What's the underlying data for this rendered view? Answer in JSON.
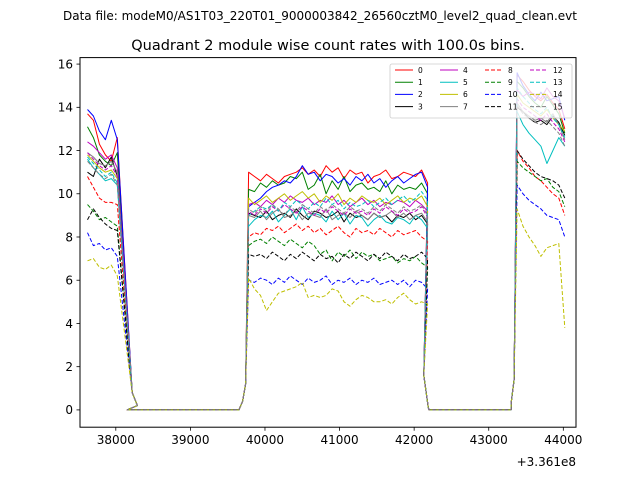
{
  "suptitle": "Data file: modeM0/AS1T03_220T01_9000003842_26560cztM0_level2_quad_clean.evt",
  "chart_data": {
    "type": "line",
    "title": "Quadrant 2 module wise count rates with 100.0s bins.",
    "xlabel": "",
    "ylabel": "",
    "offset_text": "+3.361e8",
    "xlim": [
      37520,
      44170
    ],
    "ylim": [
      -0.8,
      16.3
    ],
    "xticks": [
      38000,
      39000,
      40000,
      41000,
      42000,
      43000,
      44000
    ],
    "xtick_labels": [
      "38000",
      "39000",
      "40000",
      "41000",
      "42000",
      "43000",
      "44000"
    ],
    "yticks": [
      0,
      2,
      4,
      6,
      8,
      10,
      12,
      14,
      16
    ],
    "ytick_labels": [
      "0",
      "2",
      "4",
      "6",
      "8",
      "10",
      "12",
      "14",
      "16"
    ],
    "legend_position": "upper right",
    "legend_columns": 4,
    "segments": [
      {
        "x_start": 37620,
        "x_step": 80,
        "count": 6
      },
      {
        "x_start": 38150,
        "x_step": 100,
        "count": 16
      },
      {
        "x_start": 39780,
        "x_step": 80,
        "count": 31
      },
      {
        "x_start": 42200,
        "x_step": 100,
        "count": 12
      },
      {
        "x_start": 43380,
        "x_step": 80,
        "count": 9
      }
    ],
    "series": [
      {
        "name": "0",
        "color": "#ff0000",
        "dash": false,
        "block1": [
          13.7,
          13.4,
          12.3,
          11.8,
          11.5,
          12.6
        ],
        "block2": [
          11.0,
          10.8,
          10.6,
          10.9,
          10.7,
          10.5,
          10.8,
          10.9,
          11.0,
          11.2,
          10.9,
          11.1,
          10.8,
          11.3,
          11.0,
          11.2,
          10.7,
          11.1,
          10.9,
          11.0,
          10.5,
          10.8,
          10.9,
          11.1,
          10.7,
          10.8,
          11.0,
          10.9,
          10.8,
          11.1,
          10.5
        ],
        "block3": [
          15.5,
          15.2,
          14.8,
          14.5,
          14.3,
          14.6,
          14.2,
          13.9,
          13.0
        ]
      },
      {
        "name": "1",
        "color": "#008000",
        "dash": false,
        "block1": [
          13.1,
          12.6,
          11.8,
          11.5,
          11.3,
          11.9
        ],
        "block2": [
          10.2,
          10.1,
          10.5,
          10.3,
          10.6,
          10.4,
          10.5,
          10.8,
          10.7,
          11.0,
          10.2,
          10.4,
          10.9,
          10.0,
          10.6,
          10.2,
          10.8,
          10.1,
          10.4,
          10.5,
          10.2,
          10.3,
          10.1,
          10.6,
          10.0,
          10.4,
          10.2,
          10.3,
          10.2,
          10.5,
          10.0
        ],
        "block3": [
          15.2,
          14.9,
          14.5,
          14.2,
          14.0,
          14.5,
          14.1,
          13.7,
          12.8
        ]
      },
      {
        "name": "2",
        "color": "#0000ff",
        "dash": false,
        "block1": [
          13.9,
          13.6,
          12.9,
          12.5,
          13.4,
          12.5
        ],
        "block2": [
          9.4,
          9.6,
          9.8,
          10.1,
          10.3,
          10.4,
          10.6,
          10.5,
          10.8,
          11.3,
          10.9,
          11.0,
          10.6,
          10.9,
          10.8,
          10.5,
          10.7,
          10.4,
          10.8,
          10.6,
          10.9,
          10.5,
          10.7,
          10.3,
          10.6,
          10.8,
          10.5,
          10.7,
          10.9,
          11.0,
          10.3
        ],
        "block3": [
          15.6,
          15.0,
          14.6,
          14.3,
          14.7,
          14.3,
          14.4,
          14.5,
          13.4
        ]
      },
      {
        "name": "3",
        "color": "#000000",
        "dash": false,
        "block1": [
          11.0,
          10.8,
          11.6,
          11.2,
          11.7,
          10.8
        ],
        "block2": [
          9.1,
          9.0,
          8.9,
          9.2,
          8.8,
          9.0,
          9.1,
          8.9,
          9.3,
          9.0,
          8.8,
          9.2,
          9.1,
          8.9,
          9.0,
          9.2,
          8.7,
          9.1,
          8.9,
          9.0,
          8.8,
          9.1,
          8.9,
          9.0,
          8.7,
          9.0,
          8.9,
          9.1,
          8.8,
          9.0,
          8.6
        ],
        "block3": [
          14.0,
          13.8,
          13.5,
          13.3,
          13.4,
          13.2,
          13.6,
          13.3,
          12.7
        ]
      },
      {
        "name": "4",
        "color": "#bf00bf",
        "dash": false,
        "block1": [
          12.4,
          12.2,
          11.9,
          11.6,
          11.8,
          11.2
        ],
        "block2": [
          9.5,
          9.6,
          9.4,
          9.7,
          9.5,
          9.8,
          9.6,
          9.9,
          9.7,
          9.6,
          9.8,
          9.5,
          9.7,
          9.6,
          9.9,
          9.5,
          9.7,
          9.4,
          9.6,
          9.8,
          9.5,
          9.7,
          9.4,
          9.6,
          9.5,
          9.7,
          9.6,
          9.4,
          9.7,
          9.5,
          9.2
        ],
        "block3": [
          14.8,
          14.5,
          14.7,
          14.6,
          14.4,
          14.9,
          14.5,
          14.3,
          13.5
        ]
      },
      {
        "name": "5",
        "color": "#00bfbf",
        "dash": false,
        "block1": [
          11.6,
          11.2,
          10.9,
          10.6,
          10.7,
          10.4
        ],
        "block2": [
          8.5,
          8.8,
          9.0,
          8.9,
          9.2,
          8.7,
          9.0,
          9.3,
          8.8,
          9.4,
          8.9,
          9.1,
          9.0,
          8.7,
          9.2,
          8.8,
          9.1,
          8.6,
          9.0,
          8.9,
          8.5,
          8.8,
          9.0,
          8.7,
          8.6,
          8.9,
          8.8,
          8.6,
          9.0,
          8.8,
          8.4
        ],
        "block3": [
          13.8,
          13.2,
          12.8,
          12.5,
          12.2,
          11.4,
          12.0,
          12.6,
          12.2
        ]
      },
      {
        "name": "6",
        "color": "#bfbf00",
        "dash": false,
        "block1": [
          11.8,
          11.5,
          11.2,
          11.0,
          11.1,
          10.7
        ],
        "block2": [
          9.8,
          9.5,
          9.7,
          9.9,
          9.6,
          9.8,
          10.0,
          9.7,
          9.9,
          10.1,
          9.8,
          10.0,
          9.6,
          9.9,
          9.7,
          10.0,
          9.5,
          9.8,
          9.6,
          9.9,
          9.7,
          9.6,
          9.8,
          9.5,
          9.7,
          9.9,
          9.6,
          9.8,
          9.7,
          9.9,
          9.4
        ],
        "block3": [
          14.6,
          14.2,
          14.0,
          13.8,
          13.6,
          13.9,
          13.5,
          13.2,
          12.9
        ]
      },
      {
        "name": "7",
        "color": "#808080",
        "dash": false,
        "block1": [
          11.9,
          11.7,
          11.4,
          11.3,
          11.5,
          11.0
        ],
        "block2": [
          9.0,
          8.9,
          9.2,
          8.8,
          9.1,
          9.3,
          8.9,
          9.0,
          9.2,
          8.8,
          9.1,
          9.0,
          8.9,
          9.3,
          8.8,
          9.0,
          9.1,
          8.9,
          9.2,
          9.0,
          8.8,
          9.1,
          8.9,
          9.0,
          9.2,
          8.9,
          9.1,
          8.8,
          9.0,
          9.1,
          8.7
        ],
        "block3": [
          14.2,
          13.8,
          13.6,
          13.4,
          13.5,
          13.3,
          13.7,
          13.2,
          12.5
        ]
      },
      {
        "name": "8",
        "color": "#ff0000",
        "dash": true,
        "block1": [
          10.8,
          10.3,
          9.8,
          9.6,
          9.6,
          9.5
        ],
        "block2": [
          8.0,
          8.2,
          8.1,
          8.4,
          8.3,
          8.5,
          8.2,
          8.4,
          8.6,
          8.3,
          8.5,
          8.2,
          8.4,
          8.1,
          8.3,
          8.5,
          8.2,
          8.0,
          8.4,
          8.2,
          8.3,
          8.1,
          8.4,
          8.2,
          8.0,
          8.3,
          8.1,
          8.2,
          8.3,
          8.0,
          7.8
        ],
        "block3": [
          12.0,
          11.5,
          11.2,
          10.8,
          10.6,
          10.3,
          10.0,
          9.8,
          9.0
        ]
      },
      {
        "name": "9",
        "color": "#008000",
        "dash": true,
        "block1": [
          9.5,
          9.2,
          8.8,
          8.9,
          8.7,
          8.5
        ],
        "block2": [
          7.6,
          7.8,
          7.9,
          7.7,
          8.0,
          7.8,
          7.6,
          7.9,
          7.7,
          7.5,
          7.8,
          7.6,
          7.2,
          7.4,
          6.9,
          7.3,
          7.1,
          7.4,
          7.0,
          7.3,
          7.1,
          7.2,
          6.9,
          7.0,
          7.1,
          6.8,
          7.0,
          6.9,
          7.1,
          6.8,
          6.6
        ],
        "block3": [
          11.5,
          11.2,
          11.0,
          10.8,
          10.6,
          10.7,
          10.3,
          10.1,
          9.4
        ]
      },
      {
        "name": "10",
        "color": "#0000ff",
        "dash": true,
        "block1": [
          8.2,
          7.6,
          7.7,
          7.4,
          7.5,
          7.1
        ],
        "block2": [
          6.0,
          5.9,
          6.1,
          6.0,
          5.8,
          6.1,
          5.9,
          6.2,
          6.0,
          5.8,
          6.1,
          5.9,
          6.0,
          6.2,
          5.8,
          6.0,
          5.9,
          6.1,
          5.8,
          6.0,
          5.9,
          6.1,
          5.8,
          5.9,
          6.0,
          5.8,
          6.0,
          5.7,
          6.0,
          5.9,
          5.6
        ],
        "block3": [
          10.4,
          10.0,
          9.7,
          9.5,
          9.3,
          9.0,
          8.9,
          8.8,
          8.0
        ]
      },
      {
        "name": "11",
        "color": "#000000",
        "dash": true,
        "block1": [
          8.8,
          9.3,
          8.9,
          8.6,
          8.4,
          8.3
        ],
        "block2": [
          7.2,
          7.1,
          7.2,
          7.0,
          7.3,
          7.1,
          6.9,
          7.2,
          7.0,
          7.3,
          7.1,
          6.9,
          7.2,
          7.0,
          7.1,
          6.8,
          7.2,
          7.0,
          7.3,
          7.1,
          6.9,
          7.2,
          7.0,
          7.3,
          7.1,
          6.9,
          7.2,
          7.0,
          7.1,
          7.3,
          7.0
        ],
        "block3": [
          12.0,
          11.6,
          11.3,
          11.0,
          10.8,
          10.7,
          10.6,
          10.4,
          9.8
        ]
      },
      {
        "name": "12",
        "color": "#bf00bf",
        "dash": true,
        "block1": [
          11.9,
          11.6,
          11.3,
          11.1,
          11.3,
          10.8
        ],
        "block2": [
          9.2,
          9.0,
          9.3,
          9.1,
          9.4,
          9.2,
          9.5,
          9.3,
          9.1,
          9.4,
          9.2,
          9.0,
          9.3,
          9.1,
          9.4,
          9.2,
          9.0,
          9.3,
          9.1,
          9.2,
          9.0,
          9.3,
          9.1,
          9.4,
          9.2,
          9.0,
          9.3,
          9.1,
          9.2,
          9.4,
          8.9
        ],
        "block3": [
          14.4,
          14.0,
          13.8,
          13.6,
          13.4,
          13.7,
          13.3,
          13.0,
          12.4
        ]
      },
      {
        "name": "13",
        "color": "#00bfbf",
        "dash": true,
        "block1": [
          11.7,
          11.4,
          11.1,
          10.8,
          11.0,
          10.5
        ],
        "block2": [
          9.0,
          9.2,
          9.4,
          9.3,
          9.5,
          9.2,
          9.6,
          9.4,
          9.7,
          9.5,
          9.3,
          9.6,
          9.4,
          9.8,
          9.5,
          9.7,
          9.3,
          9.6,
          9.4,
          9.5,
          9.7,
          9.4,
          9.6,
          9.8,
          9.5,
          9.7,
          9.9,
          9.6,
          9.8,
          10.1,
          9.7
        ],
        "block3": [
          14.9,
          14.5,
          14.2,
          13.9,
          13.7,
          14.0,
          13.5,
          13.2,
          12.6
        ]
      },
      {
        "name": "14",
        "color": "#bfbf00",
        "dash": true,
        "block1": [
          6.9,
          7.0,
          6.6,
          6.5,
          6.7,
          6.2
        ],
        "block2": [
          6.1,
          5.6,
          5.3,
          4.6,
          5.0,
          5.4,
          5.5,
          5.6,
          5.7,
          5.9,
          5.2,
          5.3,
          5.2,
          5.3,
          5.6,
          5.5,
          5.0,
          4.8,
          5.1,
          5.3,
          5.2,
          5.0,
          5.0,
          5.1,
          4.9,
          5.2,
          5.4,
          5.1,
          4.9,
          5.0,
          4.9
        ],
        "block3": [
          9.3,
          8.5,
          8.0,
          7.6,
          7.1,
          7.5,
          7.6,
          7.7,
          3.8
        ]
      },
      {
        "name": "15",
        "color": "#808080",
        "dash": true,
        "block1": [
          11.5,
          11.2,
          10.9,
          10.7,
          10.9,
          10.4
        ],
        "block2": [
          9.3,
          9.1,
          9.4,
          9.2,
          9.5,
          9.3,
          9.0,
          9.4,
          9.2,
          9.5,
          9.3,
          9.1,
          9.4,
          9.2,
          9.5,
          9.3,
          9.1,
          9.4,
          9.2,
          9.3,
          9.1,
          9.4,
          9.2,
          9.5,
          9.3,
          9.1,
          9.4,
          9.2,
          9.3,
          9.5,
          9.0
        ],
        "block3": [
          14.1,
          13.7,
          13.5,
          13.3,
          13.2,
          13.4,
          13.1,
          12.8,
          12.2
        ]
      }
    ],
    "rampdown1": [
      0.8,
      0.2
    ],
    "rampup1": [
      0.4,
      1.2
    ],
    "rampdown2": [
      1.6,
      0.1
    ],
    "rampup2": [
      0.3,
      1.4
    ]
  }
}
